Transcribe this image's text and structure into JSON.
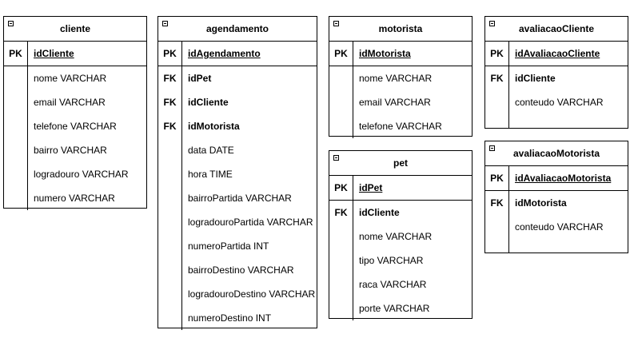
{
  "tables": {
    "cliente": {
      "title": "cliente",
      "pk": {
        "key": "PK",
        "name": "idCliente"
      },
      "fields": [
        "nome VARCHAR",
        "email VARCHAR",
        "telefone VARCHAR",
        "bairro VARCHAR",
        "logradouro VARCHAR",
        "numero VARCHAR"
      ]
    },
    "agendamento": {
      "title": "agendamento",
      "pk": {
        "key": "PK",
        "name": "idAgendamento"
      },
      "fks": [
        {
          "key": "FK",
          "name": "idPet"
        },
        {
          "key": "FK",
          "name": "idCliente"
        },
        {
          "key": "FK",
          "name": "idMotorista"
        }
      ],
      "fields": [
        "data DATE",
        "hora TIME",
        "bairroPartida VARCHAR",
        "logradouroPartida VARCHAR",
        "numeroPartida INT",
        "bairroDestino VARCHAR",
        "logradouroDestino VARCHAR",
        "numeroDestino INT"
      ]
    },
    "motorista": {
      "title": "motorista",
      "pk": {
        "key": "PK",
        "name": "idMotorista"
      },
      "fields": [
        "nome VARCHAR",
        "email VARCHAR",
        "telefone VARCHAR"
      ]
    },
    "pet": {
      "title": "pet",
      "pk": {
        "key": "PK",
        "name": "idPet"
      },
      "fks": [
        {
          "key": "FK",
          "name": "idCliente"
        }
      ],
      "fields": [
        "nome VARCHAR",
        "tipo VARCHAR",
        "raca VARCHAR",
        "porte VARCHAR"
      ]
    },
    "avaliacaoCliente": {
      "title": "avaliacaoCliente",
      "pk": {
        "key": "PK",
        "name": "idAvaliacaoCliente"
      },
      "fks": [
        {
          "key": "FK",
          "name": "idCliente"
        }
      ],
      "fields": [
        "conteudo VARCHAR"
      ]
    },
    "avaliacaoMotorista": {
      "title": "avaliacaoMotorista",
      "pk": {
        "key": "PK",
        "name": "idAvaliacaoMotorista"
      },
      "fks": [
        {
          "key": "FK",
          "name": "idMotorista"
        }
      ],
      "fields": [
        "conteudo VARCHAR"
      ]
    }
  }
}
